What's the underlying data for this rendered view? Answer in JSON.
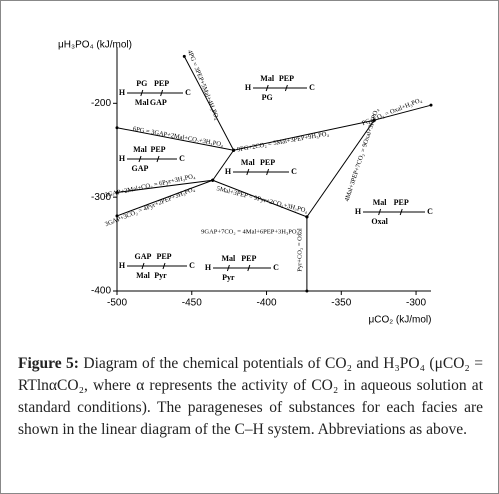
{
  "chart_data": {
    "type": "phase-diagram",
    "xlabel": "μCO₂ (kJ/mol)",
    "ylabel": "μH₃PO₄ (kJ/mol)",
    "xlim": [
      -500,
      -290
    ],
    "xticks": [
      -500,
      -450,
      -400,
      -350,
      -300
    ],
    "ylim": [
      -400,
      -140
    ],
    "yticks": [
      -400,
      -300,
      -200
    ],
    "line_color": "#000000",
    "boundaries": [
      {
        "x": [
          -455,
          -422
        ],
        "y": [
          -150,
          -250
        ]
      },
      {
        "x": [
          -500,
          -422
        ],
        "y": [
          -226,
          -250
        ]
      },
      {
        "x": [
          -422,
          -436
        ],
        "y": [
          -250,
          -282
        ]
      },
      {
        "x": [
          -422,
          -328
        ],
        "y": [
          -250,
          -218
        ]
      },
      {
        "x": [
          -328,
          -290
        ],
        "y": [
          -218,
          -202
        ]
      },
      {
        "x": [
          -328,
          -373
        ],
        "y": [
          -218,
          -321
        ]
      },
      {
        "x": [
          -436,
          -373
        ],
        "y": [
          -282,
          -321
        ]
      },
      {
        "x": [
          -500,
          -436
        ],
        "y": [
          -295,
          -282
        ]
      },
      {
        "x": [
          -500,
          -436
        ],
        "y": [
          -320,
          -282
        ]
      },
      {
        "x": [
          -373,
          -373
        ],
        "y": [
          -321,
          -400
        ]
      }
    ],
    "reaction_labels": [
      "6PG = 3GAP+2Mal+CO₂+3H₃PO₄",
      "4PG = 3PEP+5Mal+4H₃PO₄",
      "3GAP+2Mal+CO₂ = 6Pyr+3H₃PO₄",
      "3GAP+3CO₂ = 4Pyr+2PEP+3H₃PO₄",
      "9PG+2CO₂ = 5Mal+3PEP+9H₃PO₄",
      "PG+CO₂ = Oxal+H₃PO₄",
      "5Mal+3PEP = 9Pyr+2CO₂+3H₃PO₄",
      "9GAP+7CO₂ = 4Mal+6PEP+3H₃PO₄",
      "Pyr+CO₂ = Oxal",
      "4Mal+3PEP+7CO₂ = 9Oxal+3H₃PO₄"
    ],
    "facies": [
      {
        "ends": [
          "H",
          "C"
        ],
        "above": [
          "PG",
          "PEP"
        ],
        "below": [
          "Mal",
          "GAP"
        ]
      },
      {
        "ends": [
          "H",
          "C"
        ],
        "above": [
          "Mal",
          "PEP"
        ],
        "below": [
          "PG"
        ]
      },
      {
        "ends": [
          "H",
          "C"
        ],
        "above": [
          "Mal",
          "PEP"
        ],
        "below": [
          "GAP"
        ]
      },
      {
        "ends": [
          "H",
          "C"
        ],
        "above": [
          "Mal",
          "PEP"
        ],
        "below": []
      },
      {
        "ends": [
          "H",
          "C"
        ],
        "above": [
          "Mal",
          "PEP"
        ],
        "below": [
          "Oxal"
        ]
      },
      {
        "ends": [
          "H",
          "C"
        ],
        "above": [
          "GAP",
          "PEP"
        ],
        "below": [
          "Mal",
          "Pyr"
        ]
      },
      {
        "ends": [
          "H",
          "C"
        ],
        "above": [
          "Mal",
          "PEP"
        ],
        "below": [
          "Pyr"
        ]
      }
    ]
  },
  "caption": {
    "label": "Figure 5:",
    "text": "Diagram of the chemical potentials of CO₂ and H₃PO₄ (μCO₂ = RTlnαCO₂, where α represents the activity of CO₂ in aqueous solution at standard conditions). The parageneses of substances for each facies are shown in the linear diagram of the C–H system. Abbreviations as above."
  }
}
